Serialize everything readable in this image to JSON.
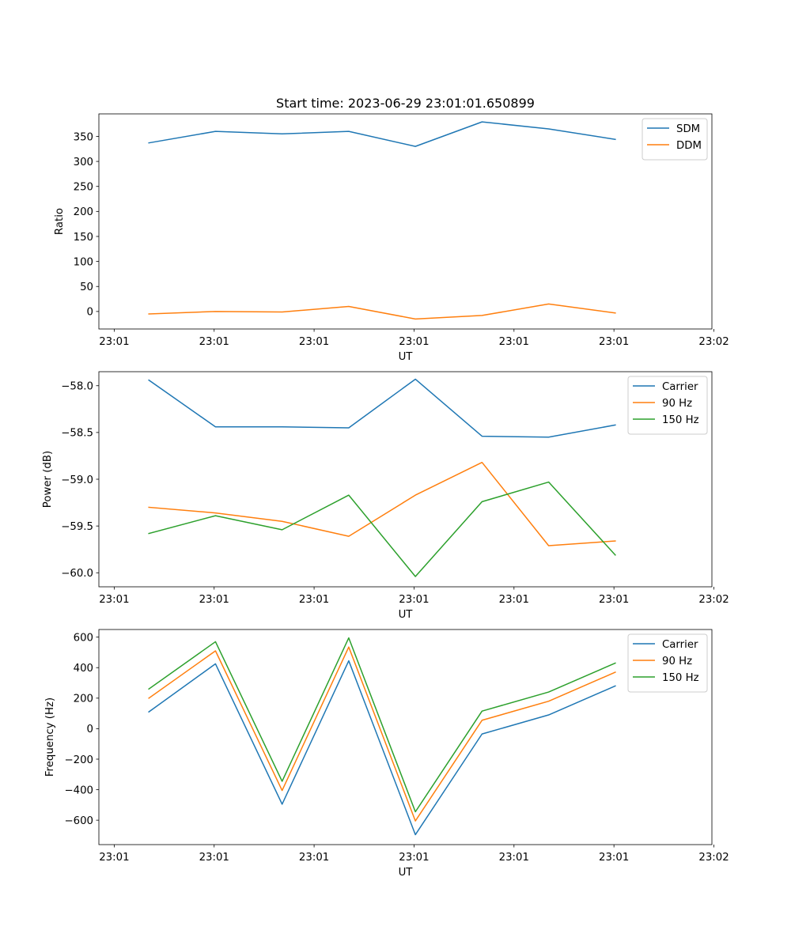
{
  "title": "Start time: 2023-06-29 23:01:01.650899",
  "x_tick_labels": [
    "23:01",
    "23:01",
    "23:01",
    "23:01",
    "23:01",
    "23:01",
    "23:02"
  ],
  "chart_data": [
    {
      "type": "line",
      "xlabel": "UT",
      "ylabel": "Ratio",
      "xlim": [
        -0.25,
        8.95
      ],
      "ylim": [
        -35,
        395
      ],
      "yticks": [
        0,
        50,
        100,
        150,
        200,
        250,
        300,
        350
      ],
      "legend_position": "top-right",
      "x": [
        0.5,
        1.5,
        2.5,
        3.5,
        4.5,
        5.5,
        6.5,
        7.5
      ],
      "series": [
        {
          "name": "SDM",
          "color": "#1f77b4",
          "values": [
            337,
            360,
            355,
            360,
            330,
            379,
            365,
            344
          ]
        },
        {
          "name": "DDM",
          "color": "#ff7f0e",
          "values": [
            -5,
            0,
            -1,
            10,
            -15,
            -8,
            15,
            -3
          ]
        }
      ]
    },
    {
      "type": "line",
      "xlabel": "UT",
      "ylabel": "Power (dB)",
      "xlim": [
        -0.25,
        8.95
      ],
      "ylim": [
        -60.15,
        -57.85
      ],
      "yticks": [
        -60.0,
        -59.5,
        -59.0,
        -58.5,
        -58.0
      ],
      "legend_position": "top-right",
      "x": [
        0.5,
        1.5,
        2.5,
        3.5,
        4.5,
        5.5,
        6.5,
        7.5
      ],
      "series": [
        {
          "name": "Carrier",
          "color": "#1f77b4",
          "values": [
            -57.94,
            -58.44,
            -58.44,
            -58.45,
            -57.93,
            -58.54,
            -58.55,
            -58.42
          ]
        },
        {
          "name": "90 Hz",
          "color": "#ff7f0e",
          "values": [
            -59.3,
            -59.36,
            -59.45,
            -59.61,
            -59.17,
            -58.82,
            -59.71,
            -59.66
          ]
        },
        {
          "name": "150 Hz",
          "color": "#2ca02c",
          "values": [
            -59.58,
            -59.39,
            -59.54,
            -59.17,
            -60.04,
            -59.24,
            -59.03,
            -59.81
          ]
        }
      ]
    },
    {
      "type": "line",
      "xlabel": "UT",
      "ylabel": "Frequency (Hz)",
      "xlim": [
        -0.25,
        8.95
      ],
      "ylim": [
        -760,
        650
      ],
      "yticks": [
        -600,
        -400,
        -200,
        0,
        200,
        400,
        600
      ],
      "legend_position": "top-right",
      "x": [
        0.5,
        1.5,
        2.5,
        3.5,
        4.5,
        5.5,
        6.5,
        7.5
      ],
      "series": [
        {
          "name": "Carrier",
          "color": "#1f77b4",
          "values": [
            110,
            425,
            -495,
            445,
            -695,
            -35,
            90,
            280
          ]
        },
        {
          "name": "90 Hz",
          "color": "#ff7f0e",
          "values": [
            200,
            510,
            -405,
            535,
            -605,
            55,
            180,
            370
          ]
        },
        {
          "name": "150 Hz",
          "color": "#2ca02c",
          "values": [
            260,
            570,
            -345,
            595,
            -545,
            115,
            240,
            430
          ]
        }
      ]
    }
  ]
}
